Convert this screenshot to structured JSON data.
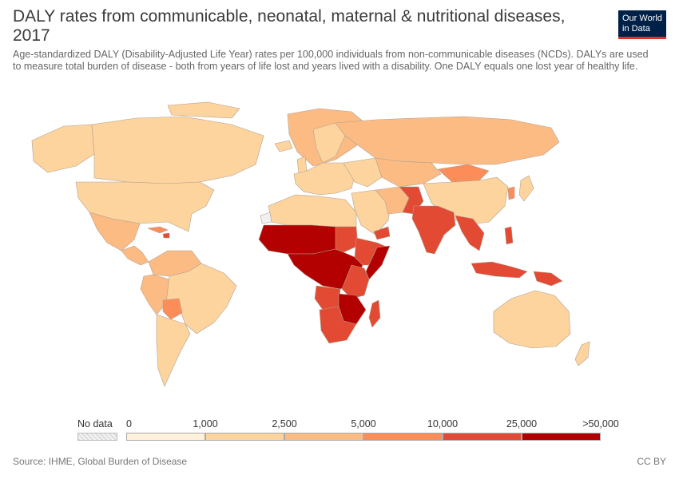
{
  "title": "DALY rates from communicable, neonatal, maternal & nutritional diseases, 2017",
  "subtitle": "Age-standardized DALY (Disability-Adjusted Life Year) rates per 100,000 individuals from non-communicable diseases (NCDs). DALYs are used to measure total burden of disease - both from years of life lost and years lived with a disability. One DALY equals one lost year of healthy life.",
  "logo": {
    "line1": "Our World",
    "line2": "in Data",
    "color": "#002147",
    "accent": "#e0322d"
  },
  "legend": {
    "nodata_label": "No data",
    "breaks": [
      "0",
      "1,000",
      "2,500",
      "5,000",
      "10,000",
      "25,000",
      ">50,000"
    ],
    "colors": [
      "#fef0d9",
      "#fdd49e",
      "#fdbb84",
      "#fc8d59",
      "#e34a33",
      "#b30000"
    ]
  },
  "map": {
    "ocean_color": "#ffffff",
    "border_color": "#b0a090"
  },
  "source": "Source: IHME, Global Burden of Disease",
  "license": "CC BY"
}
